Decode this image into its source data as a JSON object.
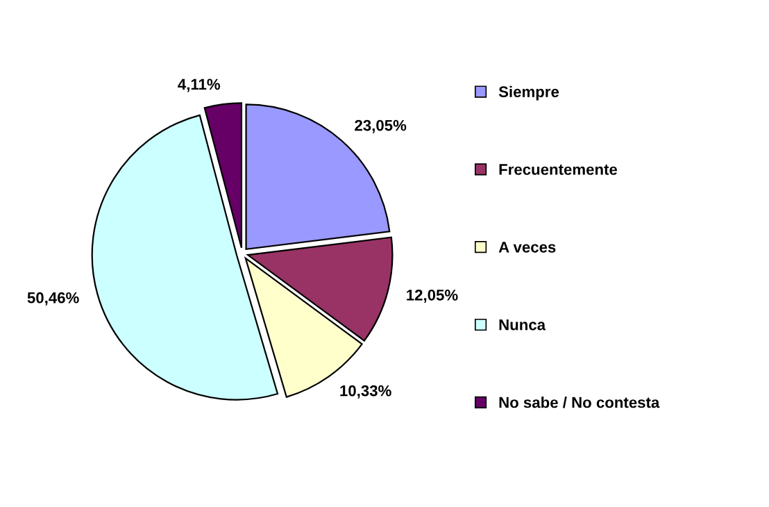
{
  "chart_data": {
    "type": "pie",
    "categories": [
      "Siempre",
      "Frecuentemente",
      "A veces",
      "Nunca",
      "No sabe / No contesta"
    ],
    "values": [
      23.05,
      12.05,
      10.33,
      50.46,
      4.11
    ],
    "colors": [
      "#9999ff",
      "#993366",
      "#ffffcc",
      "#ccffff",
      "#660066"
    ],
    "value_labels": [
      "23,05%",
      "12,05%",
      "10,33%",
      "50,46%",
      "4,11%"
    ],
    "legend": "right"
  }
}
